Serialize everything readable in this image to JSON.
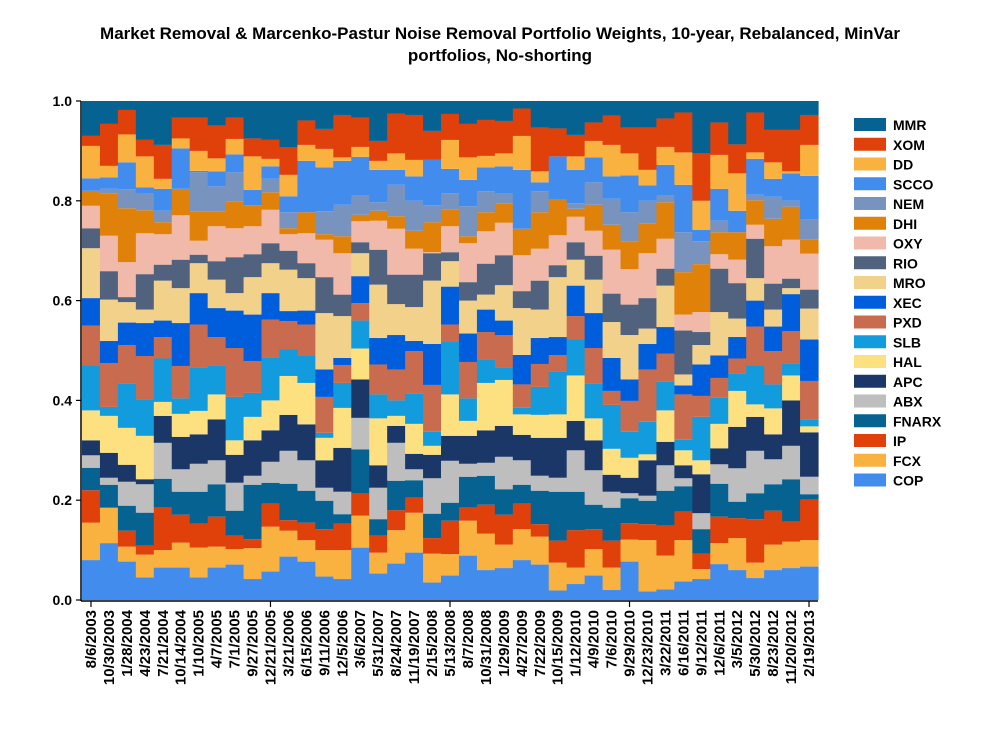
{
  "chart_data": {
    "type": "bar",
    "stacked": true,
    "title_lines": [
      "Market Removal & Marcenko-Pastur Noise Removal Portfolio Weights, 10-year, Rebalanced, MinVar",
      "portfolios, No-shorting"
    ],
    "xlabel": "",
    "ylabel": "",
    "ylim": [
      0,
      1
    ],
    "yticks": [
      "0.0",
      "0.2",
      "0.4",
      "0.6",
      "0.8",
      "1.0"
    ],
    "legend_position": "right",
    "categories": [
      "8/6/2003",
      "10/30/2003",
      "1/28/2004",
      "4/23/2004",
      "7/21/2004",
      "10/14/2004",
      "1/10/2005",
      "4/7/2005",
      "7/1/2005",
      "9/27/2005",
      "12/21/2005",
      "3/21/2006",
      "6/15/2006",
      "9/11/2006",
      "12/5/2006",
      "3/6/2007",
      "5/31/2007",
      "8/24/2007",
      "11/19/2007",
      "2/15/2008",
      "5/13/2008",
      "8/7/2008",
      "10/31/2008",
      "1/29/2009",
      "4/27/2009",
      "7/22/2009",
      "10/15/2009",
      "1/12/2010",
      "4/9/2010",
      "7/6/2010",
      "9/29/2010",
      "12/23/2010",
      "3/22/2011",
      "6/16/2011",
      "9/12/2011",
      "12/6/2011",
      "3/5/2012",
      "5/30/2012",
      "8/23/2012",
      "11/20/2012",
      "2/19/2013"
    ],
    "series": [
      {
        "name": "COP",
        "color": "#428cee"
      },
      {
        "name": "FCX",
        "color": "#f9b240"
      },
      {
        "name": "IP",
        "color": "#e0400a"
      },
      {
        "name": "FNARX",
        "color": "#066391"
      },
      {
        "name": "ABX",
        "color": "#bebebe"
      },
      {
        "name": "APC",
        "color": "#1b3767"
      },
      {
        "name": "HAL",
        "color": "#fde080"
      },
      {
        "name": "SLB",
        "color": "#139cdd"
      },
      {
        "name": "PXD",
        "color": "#c96b4e"
      },
      {
        "name": "XEC",
        "color": "#005ddb"
      },
      {
        "name": "MRO",
        "color": "#f2d18a"
      },
      {
        "name": "RIO",
        "color": "#51627f"
      },
      {
        "name": "OXY",
        "color": "#f0b9aa"
      },
      {
        "name": "DHI",
        "color": "#e0820a"
      },
      {
        "name": "NEM",
        "color": "#7893be"
      },
      {
        "name": "SCCO",
        "color": "#428cee"
      },
      {
        "name": "DD",
        "color": "#f9b240"
      },
      {
        "name": "XOM",
        "color": "#e0400a"
      },
      {
        "name": "MMR",
        "color": "#066391"
      }
    ],
    "weights_by_date_note": "each row = one date, values in series order (COP ... MMR)",
    "weights_by_date": [
      [
        0.08,
        0.075,
        0.065,
        0.045,
        0.025,
        0.03,
        0.06,
        0.09,
        0.08,
        0.055,
        0.1,
        0.04,
        0.045,
        0.03,
        0.0,
        0.025,
        0.065,
        0.02,
        0.07
      ],
      [
        0.114,
        0.071,
        0.0,
        0.046,
        0.014,
        0.05,
        0.074,
        0.018,
        0.088,
        0.044,
        0.083,
        0.057,
        0.071,
        0.084,
        0.01,
        0.023,
        0.023,
        0.084,
        0.046
      ],
      [
        0.077,
        0.03,
        0.032,
        0.05,
        0.048,
        0.034,
        0.074,
        0.088,
        0.078,
        0.045,
        0.041,
        0.01,
        0.07,
        0.108,
        0.038,
        0.054,
        0.056,
        0.049,
        0.018
      ],
      [
        0.045,
        0.046,
        0.018,
        0.066,
        0.057,
        0.01,
        0.087,
        0.073,
        0.087,
        0.066,
        0.027,
        0.071,
        0.082,
        0.046,
        0.033,
        0.013,
        0.062,
        0.033,
        0.078
      ],
      [
        0.065,
        0.035,
        0.085,
        0.058,
        0.072,
        0.054,
        0.028,
        0.087,
        0.043,
        0.033,
        0.08,
        0.032,
        0.061,
        0.024,
        0.023,
        0.044,
        0.02,
        0.068,
        0.088
      ],
      [
        0.065,
        0.05,
        0.056,
        0.046,
        0.045,
        0.065,
        0.046,
        0.031,
        0.065,
        0.086,
        0.07,
        0.057,
        0.089,
        0.053,
        0.0,
        0.081,
        0.02,
        0.042,
        0.033
      ],
      [
        0.045,
        0.06,
        0.048,
        0.064,
        0.056,
        0.059,
        0.047,
        0.086,
        0.087,
        0.063,
        0.06,
        0.017,
        0.028,
        0.059,
        0.078,
        0.003,
        0.04,
        0.067,
        0.033
      ],
      [
        0.065,
        0.042,
        0.06,
        0.065,
        0.048,
        0.082,
        0.05,
        0.057,
        0.058,
        0.058,
        0.057,
        0.037,
        0.07,
        0.03,
        0.05,
        0.03,
        0.026,
        0.066,
        0.049
      ],
      [
        0.071,
        0.031,
        0.027,
        0.05,
        0.056,
        0.056,
        0.029,
        0.087,
        0.098,
        0.075,
        0.035,
        0.072,
        0.058,
        0.054,
        0.058,
        0.036,
        0.031,
        0.043,
        0.033
      ],
      [
        0.042,
        0.062,
        0.018,
        0.109,
        0.018,
        0.071,
        0.047,
        0.048,
        0.064,
        0.093,
        0.075,
        0.046,
        0.056,
        0.042,
        0.0,
        0.031,
        0.067,
        0.036,
        0.075
      ],
      [
        0.057,
        0.09,
        0.046,
        0.042,
        0.042,
        0.063,
        0.06,
        0.085,
        0.077,
        0.053,
        0.06,
        0.04,
        0.067,
        0.035,
        0.027,
        0.025,
        0.015,
        0.038,
        0.078
      ],
      [
        0.087,
        0.052,
        0.021,
        0.073,
        0.066,
        0.072,
        0.078,
        0.053,
        0.057,
        0.02,
        0.083,
        0.038,
        0.033,
        0.012,
        0.032,
        0.032,
        0.043,
        0.055,
        0.093
      ],
      [
        0.077,
        0.043,
        0.035,
        0.064,
        0.061,
        0.072,
        0.083,
        0.054,
        0.063,
        0.028,
        0.065,
        0.03,
        0.06,
        0.042,
        0.0,
        0.103,
        0.032,
        0.049,
        0.039
      ],
      [
        0.047,
        0.053,
        0.042,
        0.057,
        0.026,
        0.055,
        0.045,
        0.01,
        0.072,
        0.055,
        0.113,
        0.072,
        0.075,
        0.011,
        0.046,
        0.088,
        0.037,
        0.04,
        0.056
      ],
      [
        0.042,
        0.058,
        0.053,
        0.019,
        0.045,
        0.088,
        0.08,
        0.05,
        0.036,
        0.014,
        0.084,
        0.043,
        0.083,
        0.034,
        0.063,
        0.088,
        0.007,
        0.085,
        0.028
      ],
      [
        0.105,
        0.064,
        0.044,
        0.089,
        0.063,
        0.077,
        0.062,
        0.056,
        0.035,
        0.054,
        0.046,
        0.022,
        0.042,
        0.013,
        0.038,
        0.078,
        0.02,
        0.059,
        0.033
      ],
      [
        0.053,
        0.042,
        0.034,
        0.033,
        0.063,
        0.045,
        0.094,
        0.048,
        0.06,
        0.053,
        0.107,
        0.07,
        0.058,
        0.02,
        0.017,
        0.065,
        0.018,
        0.04,
        0.08
      ],
      [
        0.073,
        0.067,
        0.04,
        0.059,
        0.076,
        0.034,
        0.02,
        0.031,
        0.062,
        0.069,
        0.062,
        0.059,
        0.092,
        0.025,
        0.063,
        0.03,
        0.033,
        0.08,
        0.025
      ],
      [
        0.095,
        0.08,
        0.03,
        0.035,
        0.022,
        0.031,
        0.06,
        0.06,
        0.086,
        0.02,
        0.068,
        0.065,
        0.052,
        0.036,
        0.06,
        0.049,
        0.033,
        0.09,
        0.028
      ],
      [
        0.035,
        0.058,
        0.031,
        0.049,
        0.071,
        0.047,
        0.018,
        0.028,
        0.094,
        0.082,
        0.127,
        0.055,
        0.002,
        0.06,
        0.034,
        0.091,
        0.0,
        0.058,
        0.06
      ],
      [
        0.049,
        0.043,
        0.067,
        0.036,
        0.084,
        0.05,
        0.083,
        0.105,
        0.035,
        0.076,
        0.051,
        0.018,
        0.052,
        0.033,
        0.033,
        0.049,
        0.058,
        0.052,
        0.026
      ],
      [
        0.089,
        0.07,
        0.026,
        0.062,
        0.026,
        0.056,
        0.03,
        0.045,
        0.073,
        0.057,
        0.066,
        0.037,
        0.078,
        0.014,
        0.06,
        0.053,
        0.045,
        0.067,
        0.046
      ],
      [
        0.06,
        0.073,
        0.058,
        0.058,
        0.026,
        0.065,
        0.095,
        0.046,
        0.056,
        0.045,
        0.03,
        0.062,
        0.065,
        0.038,
        0.042,
        0.048,
        0.023,
        0.072,
        0.038
      ],
      [
        0.064,
        0.047,
        0.06,
        0.051,
        0.065,
        0.062,
        0.092,
        0.024,
        0.066,
        0.029,
        0.071,
        0.06,
        0.065,
        0.038,
        0.02,
        0.055,
        0.026,
        0.065,
        0.04
      ],
      [
        0.08,
        0.062,
        0.051,
        0.038,
        0.049,
        0.051,
        0.041,
        0.013,
        0.047,
        0.059,
        0.094,
        0.034,
        0.072,
        0.053,
        0.0,
        0.118,
        0.068,
        0.055,
        0.015
      ],
      [
        0.071,
        0.056,
        0.025,
        0.067,
        0.03,
        0.076,
        0.046,
        0.056,
        0.046,
        0.052,
        0.057,
        0.058,
        0.064,
        0.073,
        0.042,
        0.018,
        0.022,
        0.088,
        0.053
      ],
      [
        0.019,
        0.056,
        0.044,
        0.098,
        0.028,
        0.08,
        0.047,
        0.085,
        0.034,
        0.036,
        0.12,
        0.024,
        0.06,
        0.071,
        0.0,
        0.087,
        0.0,
        0.056,
        0.055
      ],
      [
        0.032,
        0.033,
        0.075,
        0.077,
        0.083,
        0.059,
        0.091,
        0.072,
        0.047,
        0.061,
        0.052,
        0.035,
        0.051,
        0.016,
        0.011,
        0.067,
        0.027,
        0.043,
        0.068
      ],
      [
        0.049,
        0.053,
        0.04,
        0.049,
        0.069,
        0.06,
        0.044,
        0.069,
        0.072,
        0.07,
        0.067,
        0.048,
        0.05,
        0.052,
        0.045,
        0.05,
        0.033,
        0.037,
        0.043
      ],
      [
        0.02,
        0.045,
        0.054,
        0.066,
        0.032,
        0.034,
        0.052,
        0.088,
        0.028,
        0.066,
        0.072,
        0.057,
        0.088,
        0.05,
        0.052,
        0.045,
        0.063,
        0.059,
        0.029
      ],
      [
        0.077,
        0.044,
        0.033,
        0.05,
        0.01,
        0.031,
        0.04,
        0.052,
        0.062,
        0.043,
        0.089,
        0.061,
        0.071,
        0.056,
        0.058,
        0.074,
        0.044,
        0.052,
        0.053
      ],
      [
        0.017,
        0.103,
        0.032,
        0.047,
        0.01,
        0.071,
        0.012,
        0.065,
        0.105,
        0.051,
        0.031,
        0.061,
        0.09,
        0.06,
        0.045,
        0.031,
        0.031,
        0.085,
        0.053
      ],
      [
        0.021,
        0.068,
        0.06,
        0.07,
        0.051,
        0.047,
        0.063,
        0.057,
        0.057,
        0.053,
        0.083,
        0.034,
        0.06,
        0.073,
        0.013,
        0.062,
        0.036,
        0.057,
        0.035
      ],
      [
        0.037,
        0.083,
        0.057,
        0.051,
        0.016,
        0.026,
        0.03,
        0.021,
        0.091,
        0.018,
        0.022,
        0.088,
        0.032,
        0.085,
        0.08,
        0.095,
        0.065,
        0.08,
        0.023
      ],
      [
        0.042,
        0.02,
        0.031,
        0.049,
        0.032,
        0.078,
        0.028,
        0.087,
        0.042,
        0.063,
        0.039,
        0.026,
        0.04,
        0.096,
        0.046,
        0.023,
        0.058,
        0.095,
        0.105
      ],
      [
        0.072,
        0.042,
        0.053,
        0.066,
        0.039,
        0.032,
        0.049,
        0.052,
        0.04,
        0.045,
        0.087,
        0.087,
        0.029,
        0.044,
        0.023,
        0.064,
        0.068,
        0.065,
        0.043
      ],
      [
        0.06,
        0.064,
        0.04,
        0.033,
        0.067,
        0.083,
        0.072,
        0.034,
        0.031,
        0.043,
        0.037,
        0.071,
        0.047,
        0.055,
        0.0,
        0.043,
        0.075,
        0.058,
        0.087
      ],
      [
        0.044,
        0.031,
        0.087,
        0.052,
        0.085,
        0.068,
        0.025,
        0.078,
        0.078,
        0.052,
        0.045,
        0.079,
        0.028,
        0.049,
        0.011,
        0.072,
        0.013,
        0.08,
        0.023
      ],
      [
        0.06,
        0.051,
        0.068,
        0.053,
        0.05,
        0.05,
        0.052,
        0.048,
        0.067,
        0.049,
        0.034,
        0.052,
        0.075,
        0.055,
        0.044,
        0.036,
        0.033,
        0.065,
        0.058
      ],
      [
        0.064,
        0.053,
        0.04,
        0.085,
        0.067,
        0.091,
        0.05,
        0.023,
        0.066,
        0.074,
        0.012,
        0.019,
        0.078,
        0.066,
        0.012,
        0.055,
        0.004,
        0.083,
        0.058
      ],
      [
        0.067,
        0.053,
        0.081,
        0.011,
        0.035,
        0.089,
        0.012,
        0.014,
        0.077,
        0.083,
        0.062,
        0.038,
        0.072,
        0.028,
        0.04,
        0.088,
        0.062,
        0.06,
        0.028
      ]
    ]
  }
}
